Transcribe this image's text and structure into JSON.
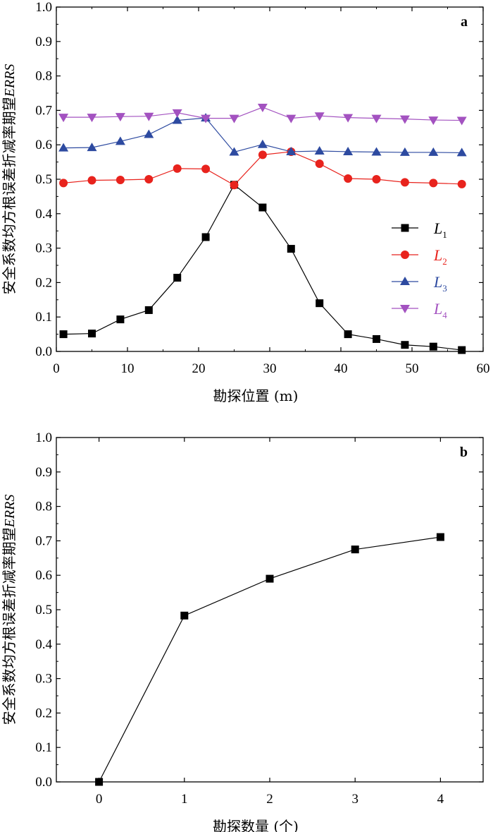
{
  "chart_data": [
    {
      "type": "line",
      "panel": "a",
      "xlabel": "勘探位置 (m)",
      "ylabel_main": "安全系数均方根误差折减率期望",
      "ylabel_em": "ERRS",
      "xlim": [
        0,
        60
      ],
      "ylim": [
        0,
        1.0
      ],
      "xticks": [
        "0",
        "10",
        "20",
        "30",
        "40",
        "50",
        "60"
      ],
      "yticks": [
        "0.0",
        "0.1",
        "0.2",
        "0.3",
        "0.4",
        "0.5",
        "0.6",
        "0.7",
        "0.8",
        "0.9",
        "1.0"
      ],
      "legend_position": "right",
      "x": [
        1,
        5,
        9,
        13,
        17,
        21,
        25,
        29,
        33,
        37,
        41,
        45,
        49,
        53,
        57
      ],
      "series": [
        {
          "name_base": "L",
          "name_sub": "1",
          "color": "#000000",
          "marker": "square",
          "values": [
            0.05,
            0.052,
            0.093,
            0.12,
            0.214,
            0.332,
            0.484,
            0.418,
            0.298,
            0.14,
            0.05,
            0.036,
            0.019,
            0.014,
            0.004
          ]
        },
        {
          "name_base": "L",
          "name_sub": "2",
          "color": "#e8231d",
          "marker": "circle",
          "values": [
            0.489,
            0.497,
            0.498,
            0.5,
            0.531,
            0.53,
            0.483,
            0.571,
            0.58,
            0.545,
            0.502,
            0.5,
            0.491,
            0.489,
            0.486
          ]
        },
        {
          "name_base": "L",
          "name_sub": "3",
          "color": "#2d4aa0",
          "marker": "triangle-up",
          "values": [
            0.591,
            0.592,
            0.61,
            0.63,
            0.671,
            0.678,
            0.579,
            0.601,
            0.58,
            0.582,
            0.58,
            0.579,
            0.578,
            0.578,
            0.577
          ]
        },
        {
          "name_base": "L",
          "name_sub": "4",
          "color": "#a352c0",
          "marker": "triangle-down",
          "values": [
            0.68,
            0.68,
            0.682,
            0.683,
            0.693,
            0.677,
            0.677,
            0.709,
            0.677,
            0.684,
            0.679,
            0.677,
            0.675,
            0.672,
            0.671
          ]
        }
      ]
    },
    {
      "type": "line",
      "panel": "b",
      "xlabel": "勘探数量 (个)",
      "ylabel_main": "安全系数均方根误差折减率期望",
      "ylabel_em": "ERRS",
      "xlim": [
        -0.5,
        4.5
      ],
      "ylim": [
        0,
        1.0
      ],
      "xticks": [
        "0",
        "1",
        "2",
        "3",
        "4"
      ],
      "yticks": [
        "0.0",
        "0.1",
        "0.2",
        "0.3",
        "0.4",
        "0.5",
        "0.6",
        "0.7",
        "0.8",
        "0.9",
        "1.0"
      ],
      "x": [
        0,
        1,
        2,
        3,
        4
      ],
      "series": [
        {
          "color": "#000000",
          "marker": "square",
          "values": [
            0.0,
            0.483,
            0.59,
            0.675,
            0.711
          ]
        }
      ]
    }
  ]
}
